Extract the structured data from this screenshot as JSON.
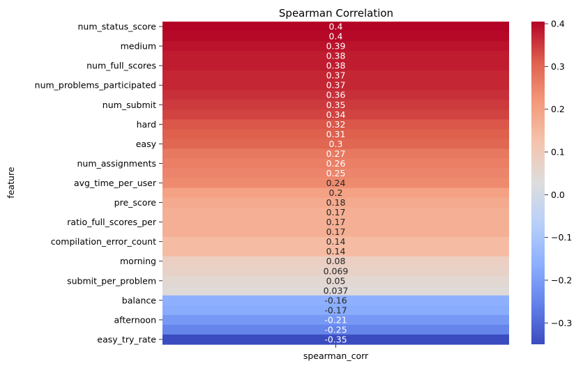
{
  "chart_data": {
    "type": "heatmap",
    "title": "Spearman Correlation",
    "xlabel": "",
    "ylabel": "feature",
    "x_categories": [
      "spearman_corr"
    ],
    "y_tick_labels": [
      "num_status_score",
      "medium",
      "num_full_scores",
      "num_problems_participated",
      "num_submit",
      "hard",
      "easy",
      "num_assignments",
      "avg_time_per_user",
      "pre_score",
      "ratio_full_scores_per",
      "compilation_error_count",
      "morning",
      "submit_per_problem",
      "balance",
      "afternoon",
      "easy_try_rate"
    ],
    "values": [
      0.405,
      0.4,
      0.39,
      0.38,
      0.38,
      0.37,
      0.37,
      0.36,
      0.35,
      0.34,
      0.32,
      0.31,
      0.3,
      0.27,
      0.26,
      0.25,
      0.24,
      0.2,
      0.18,
      0.17,
      0.17,
      0.17,
      0.14,
      0.14,
      0.08,
      0.069,
      0.05,
      0.037,
      -0.16,
      -0.17,
      -0.21,
      -0.25,
      -0.35
    ],
    "cell_labels": [
      "0.4",
      "0.4",
      "0.39",
      "0.38",
      "0.38",
      "0.37",
      "0.37",
      "0.36",
      "0.35",
      "0.34",
      "0.32",
      "0.31",
      "0.3",
      "0.27",
      "0.26",
      "0.25",
      "0.24",
      "0.2",
      "0.18",
      "0.17",
      "0.17",
      "0.17",
      "0.14",
      "0.14",
      "0.08",
      "0.069",
      "0.05",
      "0.037",
      "-0.16",
      "-0.17",
      "-0.21",
      "-0.25",
      "-0.35"
    ],
    "colorbar": {
      "colormap": "coolwarm",
      "vmin": -0.35,
      "vmax": 0.405,
      "ticks": [
        0.4,
        0.3,
        0.2,
        0.1,
        0.0,
        -0.1,
        -0.2,
        -0.3
      ],
      "tick_labels": [
        "0.4",
        "0.3",
        "0.2",
        "0.1",
        "0.0",
        "−0.1",
        "−0.2",
        "−0.3"
      ]
    },
    "grid": false,
    "legend": "colorbar-right"
  }
}
